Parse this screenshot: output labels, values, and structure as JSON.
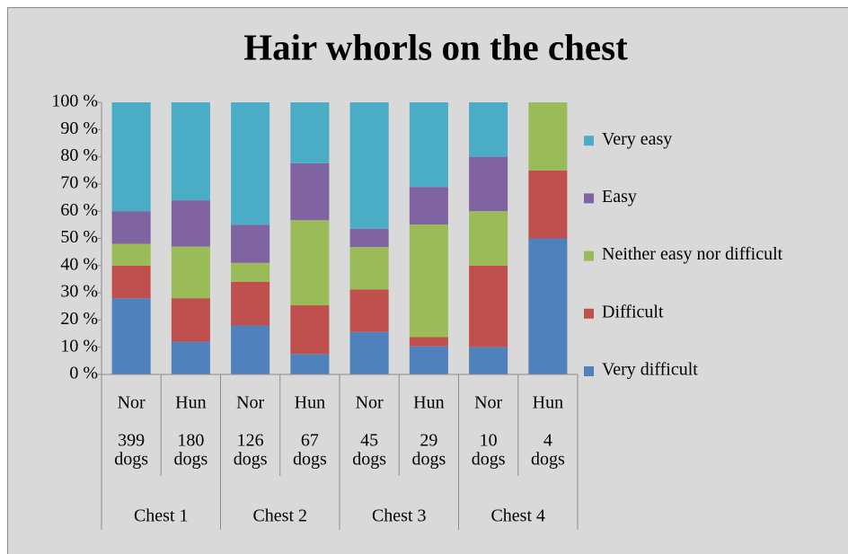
{
  "chart_data": {
    "type": "bar",
    "stacked": true,
    "title": "Hair whorls on the chest",
    "categories": [
      [
        "Nor",
        "399",
        "dogs"
      ],
      [
        "Hun",
        "180",
        "dogs"
      ],
      [
        "Nor",
        "126",
        "dogs"
      ],
      [
        "Hun",
        "67",
        "dogs"
      ],
      [
        "Nor",
        "45",
        "dogs"
      ],
      [
        "Hun",
        "29",
        "dogs"
      ],
      [
        "Nor",
        "10",
        "dogs"
      ],
      [
        "Hun",
        "4",
        "dogs"
      ]
    ],
    "groups": [
      "Chest 1",
      "Chest 2",
      "Chest 3",
      "Chest 4"
    ],
    "series": [
      {
        "name": "Very difficult",
        "color": "#4f81bd",
        "values": [
          28,
          12,
          18,
          7.5,
          15.6,
          10.3,
          10,
          50
        ]
      },
      {
        "name": "Difficult",
        "color": "#c0504d",
        "values": [
          12,
          16,
          16,
          17.9,
          15.6,
          3.4,
          30,
          25
        ]
      },
      {
        "name": "Neither easy nor difficult",
        "color": "#9bbb59",
        "values": [
          8,
          19,
          7,
          31.3,
          15.6,
          41.4,
          20,
          25
        ]
      },
      {
        "name": "Easy",
        "color": "#8064a2",
        "values": [
          12,
          17,
          14,
          20.9,
          6.7,
          13.8,
          20,
          0
        ]
      },
      {
        "name": "Very easy",
        "color": "#4bacc6",
        "values": [
          40,
          36,
          45,
          22.4,
          46.5,
          31.1,
          20,
          0
        ]
      }
    ],
    "ylim": [
      0,
      100
    ],
    "yticks": [
      {
        "value": 0,
        "label": "0 %"
      },
      {
        "value": 10,
        "label": "10 %"
      },
      {
        "value": 20,
        "label": "20 %"
      },
      {
        "value": 30,
        "label": "30 %"
      },
      {
        "value": 40,
        "label": "40 %"
      },
      {
        "value": 50,
        "label": "50 %"
      },
      {
        "value": 60,
        "label": "60 %"
      },
      {
        "value": 70,
        "label": "70 %"
      },
      {
        "value": 80,
        "label": "80 %"
      },
      {
        "value": 90,
        "label": "90 %"
      },
      {
        "value": 100,
        "label": "100 %"
      }
    ],
    "grid": false,
    "legend": "right"
  }
}
